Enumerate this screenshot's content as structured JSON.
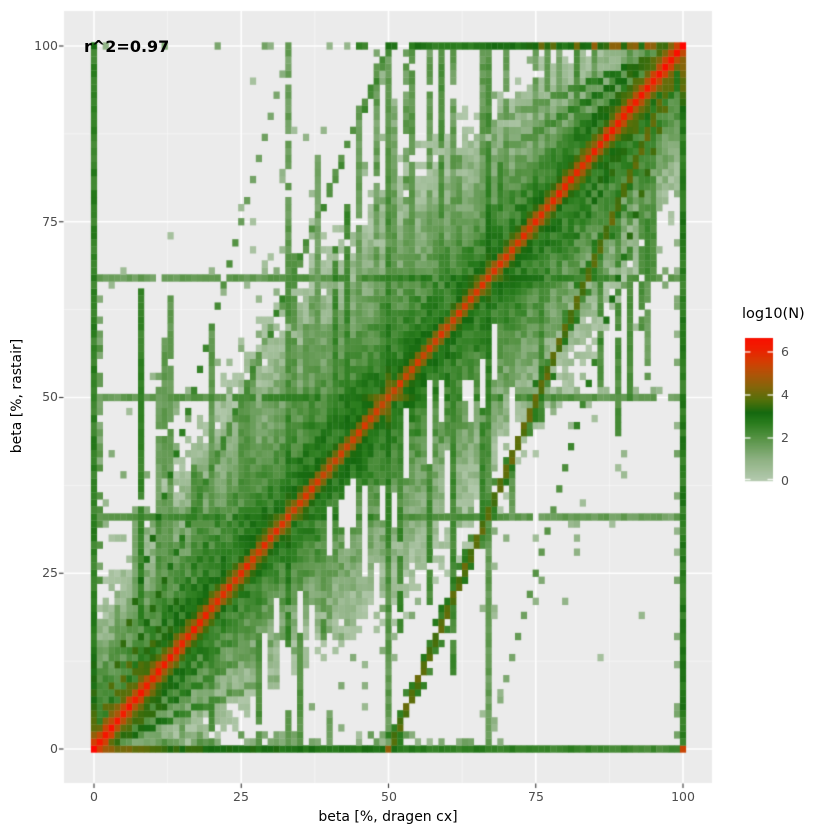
{
  "annotation": {
    "text": "r^2=0.97"
  },
  "axes": {
    "x": {
      "title": "beta [%, dragen cx]",
      "tick_labels": [
        "0",
        "25",
        "50",
        "75",
        "100"
      ],
      "tick_values": [
        0,
        25,
        50,
        75,
        100
      ],
      "range": [
        0,
        100
      ]
    },
    "y": {
      "title": "beta [%, rastair]",
      "tick_labels": [
        "0",
        "25",
        "50",
        "75",
        "100"
      ],
      "tick_values": [
        0,
        25,
        50,
        75,
        100
      ],
      "range": [
        0,
        100
      ]
    }
  },
  "legend": {
    "title": "log10(N)",
    "tick_labels": [
      "6",
      "4",
      "2",
      "0"
    ],
    "tick_values": [
      6,
      4,
      2,
      0
    ],
    "scale_min": 0,
    "scale_max": 6.65
  },
  "style": {
    "figure_bg": "#FFFFFF",
    "panel_bg": "#EBEBEB",
    "grid_major": "#FFFFFF",
    "grid_minor": "rgba(255,255,255,0.55)",
    "axis_text_color": "#4D4D4D",
    "axis_title_color": "#000000",
    "tick_mark_color": "#333333"
  },
  "chart_data": {
    "type": "heatmap",
    "subtype": "2d-bin-density",
    "title": "",
    "xlabel": "beta [%, dragen cx]",
    "ylabel": "beta [%, rastair]",
    "legend_label": "log10(N)",
    "annotation": "r^2=0.97",
    "r_squared": 0.97,
    "bins": 101,
    "x_range": [
      0,
      100
    ],
    "y_range": [
      0,
      100
    ],
    "x_ticks": [
      0,
      25,
      50,
      75,
      100
    ],
    "y_ticks": [
      0,
      25,
      50,
      75,
      100
    ],
    "grid_minor": [
      12.5,
      37.5,
      62.5,
      87.5
    ],
    "value_scale": {
      "label": "log10(N)",
      "min": 0,
      "max": 6.65,
      "legend_ticks": [
        6,
        4,
        2,
        0
      ]
    },
    "color_stops": [
      [
        0.0,
        "#B6CBB0"
      ],
      [
        1.0,
        "#8FB284"
      ],
      [
        2.0,
        "#579345"
      ],
      [
        2.7,
        "#2B7D1E"
      ],
      [
        3.2,
        "#15690F"
      ],
      [
        3.8,
        "#55700A"
      ],
      [
        4.4,
        "#85650A"
      ],
      [
        5.0,
        "#B05408"
      ],
      [
        5.6,
        "#D63C02"
      ],
      [
        6.2,
        "#F01E00"
      ],
      [
        7.0,
        "#FF0600"
      ]
    ],
    "seed": 1234,
    "features": {
      "main_diagonal": {
        "from": [
          0,
          0
        ],
        "to": [
          100,
          100
        ],
        "peak_mid": 5.4,
        "peak_end": 6.6,
        "ring_falloff": 1.1,
        "halo_value": 3.2
      },
      "fan_slopes": [
        0.33,
        0.5,
        0.67,
        0.75,
        1.33,
        1.5,
        2.0,
        3.0
      ],
      "fan_value": 4.5,
      "fan_decay": 0.085,
      "fan_reach": 45,
      "secondary_diagonal": {
        "from": [
          50,
          0
        ],
        "to": [
          100,
          100
        ],
        "value": 3.9,
        "halo_value": 2.7
      },
      "mirror_diagonal": {
        "from": [
          0,
          0
        ],
        "to": [
          50,
          100
        ],
        "value": 2.3
      },
      "cross_lines": {
        "positions": [
          33.3,
          50,
          66.7
        ],
        "base_value": 1.5,
        "peak_value": 3.3,
        "center_boost": [
          {
            "x": 50,
            "y": 50,
            "v": 5.2
          }
        ],
        "minor_centers": [
          33,
          67
        ]
      },
      "edges": {
        "bottom": {
          "base": 3.45,
          "left_peak": 5.3,
          "mid_peak": 4.6,
          "right_corner": 5.4
        },
        "top": {
          "start_x": 45,
          "base": 2.7,
          "right_peak": 4.4
        },
        "left": {
          "base": 2.6,
          "bottom_boost": 2.2
        },
        "right": {
          "base": 2.8,
          "top_peak": 4.6
        }
      },
      "corners": [
        {
          "x": 0,
          "y": 0,
          "v": 7.0
        },
        {
          "x": 100,
          "y": 100,
          "v": 7.0
        },
        {
          "x": 100,
          "y": 0,
          "v": 5.4
        },
        {
          "x": 0,
          "y": 100,
          "v": 3.2
        }
      ],
      "streaks": {
        "count": 70,
        "min_len": 6,
        "max_len": 50,
        "value_min": 1.4,
        "value_max": 2.5,
        "top_reach_columns": [
          48,
          53,
          57,
          61,
          66,
          70,
          75
        ]
      },
      "scatter_count": 700,
      "scatter_spread": 18,
      "scatter_value_max": 1.3,
      "hole_count": 30
    }
  }
}
